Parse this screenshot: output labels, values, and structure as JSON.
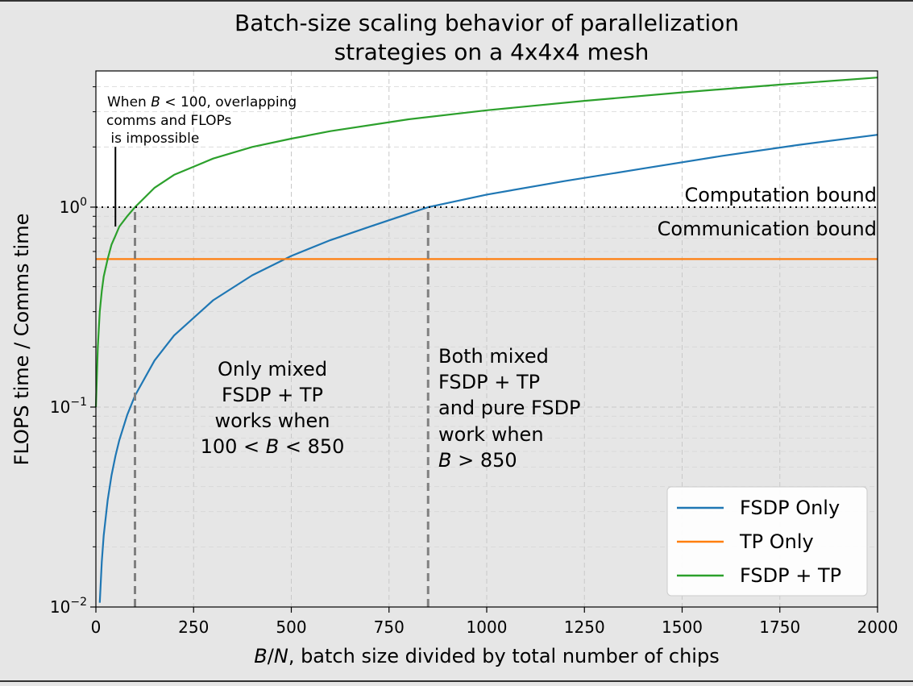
{
  "chart_data": {
    "type": "line",
    "title": "Batch-size scaling behavior of parallelization strategies on a 4x4x4 mesh",
    "title_lines": [
      "Batch-size scaling behavior of parallelization",
      "strategies on a 4x4x4 mesh"
    ],
    "xlabel": "B/N, batch size divided by total number of chips",
    "xlabel_parts": {
      "var_b": "B",
      "slash": "/",
      "var_n": "N",
      "rest": ", batch size divided by total number of chips"
    },
    "ylabel": "FLOPS time / Comms time",
    "xlim": [
      0,
      2000
    ],
    "ylim": [
      0.01,
      4.8
    ],
    "yscale": "log",
    "grid": true,
    "legend_position": "bottom-right",
    "x_ticks": [
      0,
      250,
      500,
      750,
      1000,
      1250,
      1500,
      1750,
      2000
    ],
    "x_tick_labels": [
      "0",
      "250",
      "500",
      "750",
      "1000",
      "1250",
      "1500",
      "1750",
      "2000"
    ],
    "y_ticks": [
      {
        "value": 0.01,
        "base": "10",
        "exp": "−2"
      },
      {
        "value": 0.1,
        "base": "10",
        "exp": "−1"
      },
      {
        "value": 1,
        "base": "10",
        "exp": "0"
      }
    ],
    "series": [
      {
        "name": "FSDP Only",
        "color": "#1f77b4",
        "x": [
          10,
          15,
          20,
          30,
          40,
          50,
          60,
          80,
          100,
          150,
          200,
          300,
          400,
          500,
          600,
          700,
          850,
          1000,
          1200,
          1400,
          1600,
          1800,
          2000
        ],
        "y": [
          0.0105,
          0.0168,
          0.0228,
          0.0342,
          0.0456,
          0.057,
          0.0684,
          0.0912,
          0.114,
          0.171,
          0.228,
          0.342,
          0.456,
          0.57,
          0.684,
          0.798,
          1.0,
          1.155,
          1.35,
          1.56,
          1.8,
          2.05,
          2.3
        ]
      },
      {
        "name": "TP Only",
        "color": "#ff7f0e",
        "x": [
          0,
          2000
        ],
        "y": [
          0.55,
          0.55
        ]
      },
      {
        "name": "FSDP + TP",
        "color": "#2ca02c",
        "x": [
          0,
          5,
          10,
          15,
          20,
          30,
          40,
          50,
          60,
          80,
          100,
          150,
          200,
          300,
          400,
          500,
          600,
          800,
          1000,
          1250,
          1500,
          1750,
          2000
        ],
        "y": [
          0.1,
          0.2,
          0.3,
          0.38,
          0.45,
          0.55,
          0.65,
          0.72,
          0.8,
          0.9,
          1.0,
          1.25,
          1.45,
          1.75,
          2.0,
          2.2,
          2.4,
          2.75,
          3.05,
          3.4,
          3.75,
          4.1,
          4.45
        ]
      }
    ],
    "reference_lines": [
      {
        "kind": "horizontal",
        "y": 1,
        "style": "dotted",
        "color": "#000000"
      },
      {
        "kind": "vertical",
        "x": 100,
        "y_from": 0.01,
        "y_to": 1,
        "style": "dashed",
        "color": "#808080"
      },
      {
        "kind": "vertical",
        "x": 850,
        "y_from": 0.01,
        "y_to": 1,
        "style": "dashed",
        "color": "#808080"
      },
      {
        "kind": "vertical",
        "x": 50,
        "y_from": 0.8,
        "y_to": 2.0,
        "style": "solid",
        "color": "#000000"
      }
    ],
    "shaded_region": {
      "y_from": 0.01,
      "y_to": 1,
      "color": "#e6e6e6"
    },
    "annotations": {
      "computation_bound": "Computation bound",
      "communication_bound": "Communication bound",
      "overlap_note": {
        "line1_prefix": "When ",
        "line1_var": "B",
        "line1_suffix": " < 100, overlapping",
        "line2": "comms and FLOPs",
        "line3": " is impossible"
      },
      "mixed_only": {
        "line1": "Only mixed",
        "line2": "FSDP + TP",
        "line3": "works when",
        "line4_a": "100 < ",
        "line4_var": "B",
        "line4_b": " < 850"
      },
      "both_work": {
        "line1": "Both mixed",
        "line2": "FSDP + TP",
        "line3": "and pure FSDP",
        "line4": "work when",
        "line5_var": "B",
        "line5_b": " > 850"
      }
    }
  }
}
